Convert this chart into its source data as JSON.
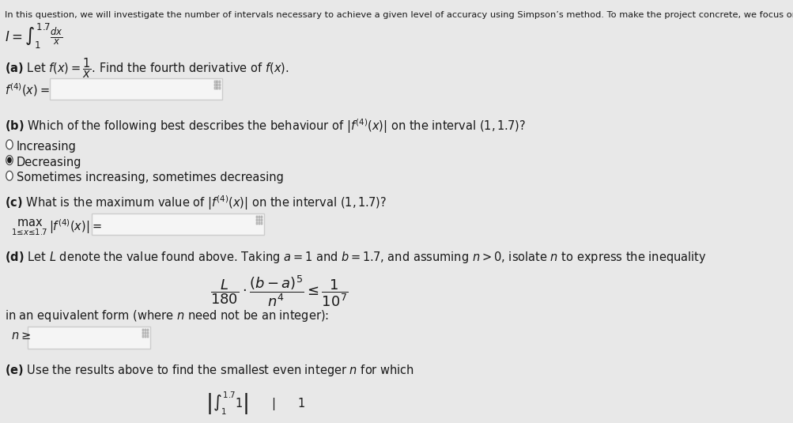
{
  "background_color": "#e8e8e8",
  "title_text": "In this question, we will investigate the number of intervals necessary to achieve a given level of accuracy using Simpson’s method. To make the project concrete, we focus on the integra",
  "integral_text": "I = ∫₁^{1.7} dx/x",
  "part_a_label": "(a) Let f(x) = 1/x. Find the fourth derivative of f(x).",
  "f4_label": "f⁴(x) =",
  "part_b_label": "(b) Which of the following best describes the behaviour of |f⁴(x)| on the interval (1, 1.7)?",
  "option_increasing": "Increasing",
  "option_decreasing": "Decreasing",
  "option_sometimes": "Sometimes increasing, sometimes decreasing",
  "selected_option": "Decreasing",
  "part_c_label": "(c) What is the maximum value of |f⁴(x)| on the interval (1, 1.7)?",
  "max_label": "max",
  "max_subscript": "1≤x≤1.7",
  "max_eq": "|f⁴(x)| =",
  "part_d_label": "(d) Let L denote the value found above. Taking a = 1 and b = 1.7, and assuming n > 0, isolate n to express the inequality",
  "inequality_text": "L  (b − a)⁵     1",
  "inequality_line1": "————————  ≤  ———",
  "inequality_denom1": "180    n⁴",
  "inequality_denom2": "10⁷",
  "equivalent_text": "in an equivalent form (where n need not be an integer):",
  "n_geq": "n ≥",
  "part_e_label": "(e) Use the results above to find the smallest even integer n for which",
  "bottom_text": "|      ∫₁^{1.7} 1     |     1",
  "input_box_color": "#f5f5f5",
  "input_box_border": "#cccccc",
  "radio_fill_selected": "#1a1a1a",
  "radio_fill_unselected": "#ffffff",
  "text_color": "#1a1a1a",
  "font_size_body": 10.5,
  "font_size_small": 9.5
}
